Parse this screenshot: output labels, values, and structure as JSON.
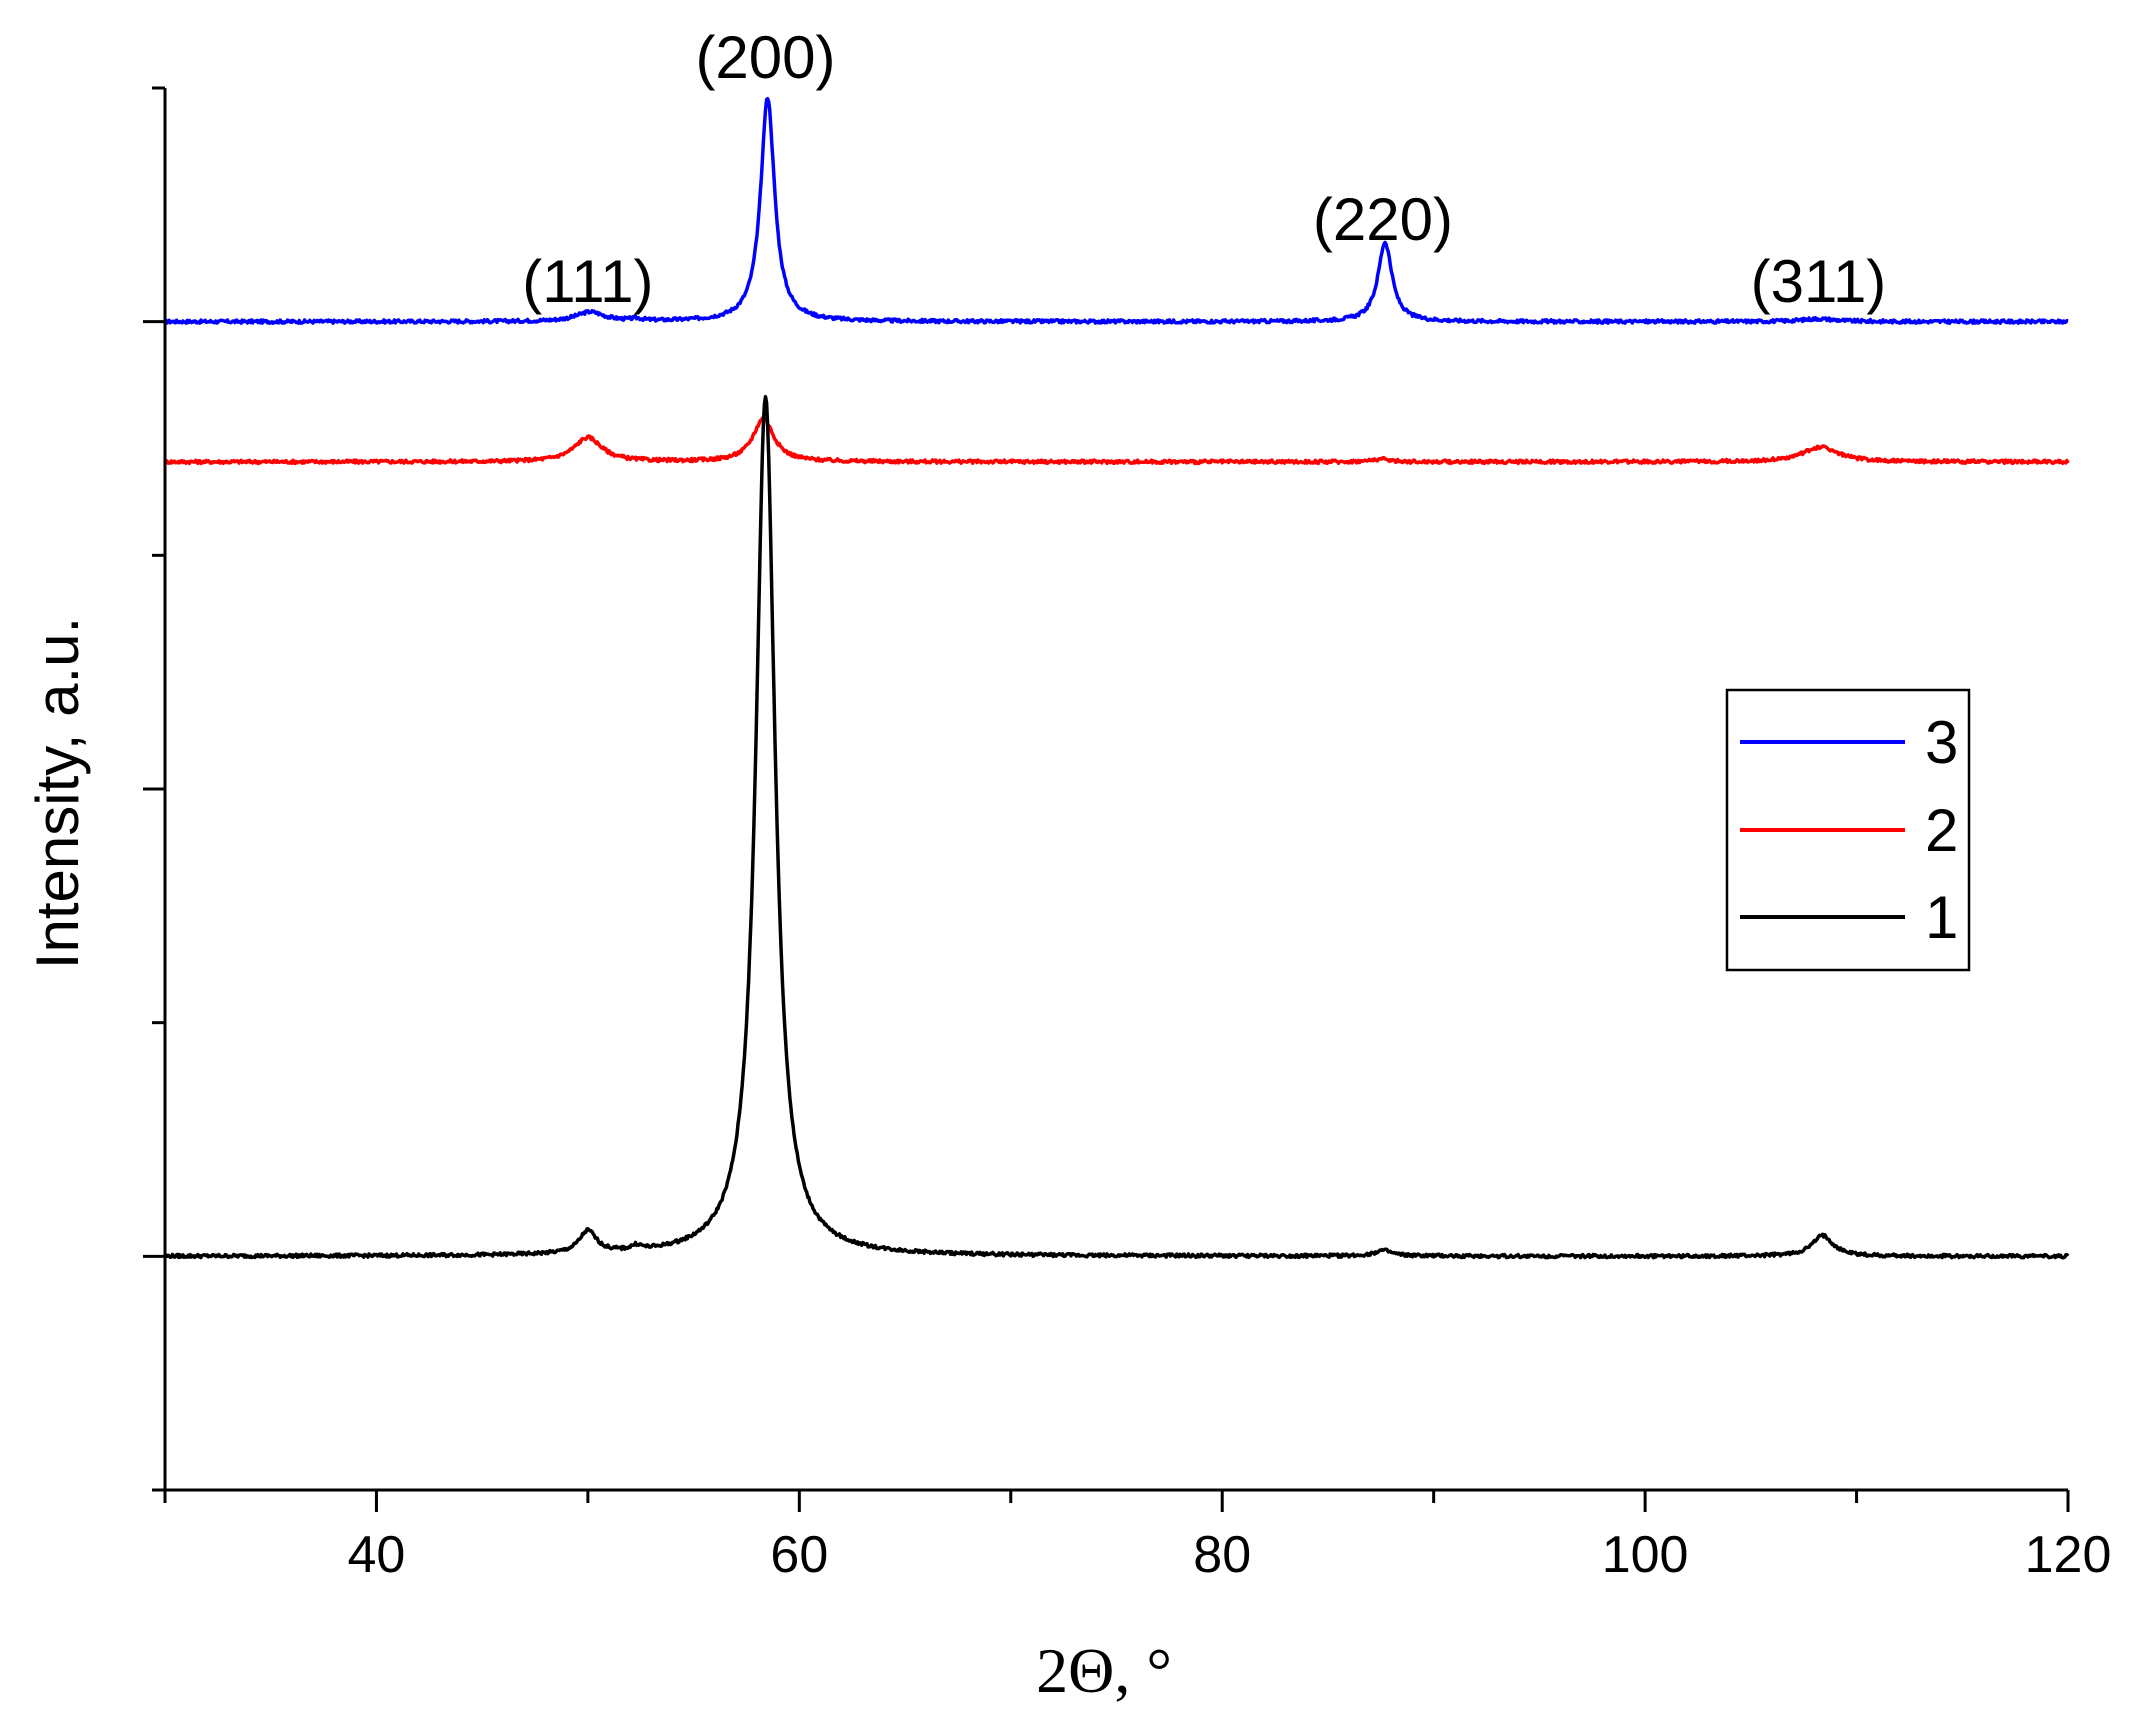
{
  "chart_data": {
    "type": "line",
    "xlabel": "2Θ, °",
    "ylabel": "Intensity, a.u.",
    "xlim": [
      30,
      120
    ],
    "xticks": [
      40,
      60,
      80,
      100,
      120
    ],
    "yticks_labeled": false,
    "grid": false,
    "legend": {
      "position": "right",
      "entries": [
        "3",
        "2",
        "1"
      ]
    },
    "annotations": [
      {
        "text": "(111)",
        "x": 50.0
      },
      {
        "text": "(200)",
        "x": 58.4
      },
      {
        "text": "(220)",
        "x": 87.6
      },
      {
        "text": "(311)",
        "x": 108.2
      }
    ],
    "series": [
      {
        "name": "3",
        "color": "#0000ff",
        "offset": 100,
        "peaks": [
          [
            50.1,
            1.0,
            0.8
          ],
          [
            52.3,
            0.2,
            0.3
          ],
          [
            58.5,
            24,
            0.4
          ],
          [
            87.7,
            8.5,
            0.4
          ],
          [
            108.2,
            0.3,
            1.0
          ]
        ]
      },
      {
        "name": "2",
        "color": "#ff0000",
        "offset": 85,
        "peaks": [
          [
            50.0,
            2.6,
            0.8
          ],
          [
            58.3,
            4.6,
            0.6
          ],
          [
            87.5,
            0.3,
            0.5
          ],
          [
            108.3,
            1.6,
            1.0
          ]
        ]
      },
      {
        "name": "1",
        "color": "#000000",
        "offset": 0,
        "peaks": [
          [
            50.0,
            2.4,
            0.5
          ],
          [
            52.3,
            0.5,
            0.3
          ],
          [
            58.4,
            92,
            0.55
          ],
          [
            87.6,
            0.6,
            0.5
          ],
          [
            108.4,
            2.2,
            0.6
          ]
        ]
      }
    ]
  }
}
